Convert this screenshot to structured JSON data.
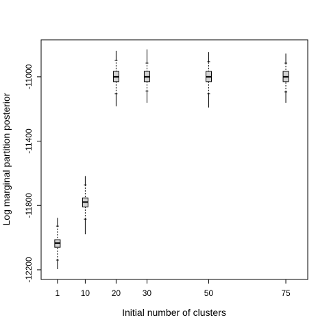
{
  "chart_data": {
    "type": "box",
    "x_label": "Initial number of clusters",
    "y_label": "Log marginal partition posterior",
    "xlim": [
      -4.3,
      82.1
    ],
    "ylim": [
      -12260,
      -10770
    ],
    "xticks": [
      1,
      10,
      20,
      30,
      50,
      75
    ],
    "yticks": [
      -11000,
      -11400,
      -11800,
      -12200
    ],
    "color": "#d3d3d3",
    "boxes": [
      {
        "x": 1,
        "low": -12196,
        "whislo": -12140,
        "q1": -12060,
        "med": -12034,
        "q3": -12013,
        "whishi": -11928,
        "high": -11877
      },
      {
        "x": 10,
        "low": -11979,
        "whislo": -11885,
        "q1": -11809,
        "med": -11779,
        "q3": -11753,
        "whishi": -11672,
        "high": -11617
      },
      {
        "x": 20,
        "low": -11183,
        "whislo": -11106,
        "q1": -11030,
        "med": -11000,
        "q3": -10966,
        "whishi": -10898,
        "high": -10838
      },
      {
        "x": 30,
        "low": -11162,
        "whislo": -11089,
        "q1": -11030,
        "med": -11000,
        "q3": -10966,
        "whishi": -10915,
        "high": -10830
      },
      {
        "x": 50,
        "low": -11191,
        "whislo": -11106,
        "q1": -11030,
        "med": -11000,
        "q3": -10966,
        "whishi": -10906,
        "high": -10847
      },
      {
        "x": 75,
        "low": -11162,
        "whislo": -11094,
        "q1": -11030,
        "med": -11000,
        "q3": -10966,
        "whishi": -10915,
        "high": -10855
      }
    ]
  }
}
